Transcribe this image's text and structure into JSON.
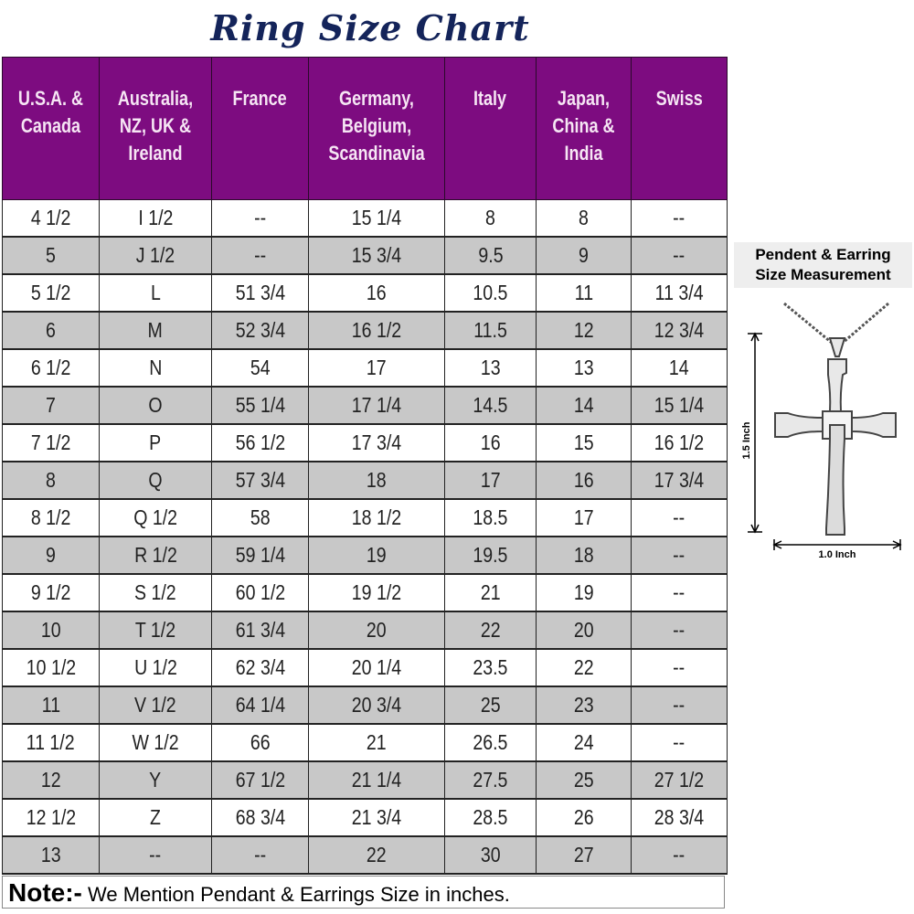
{
  "title": "Ring Size Chart",
  "colors": {
    "header_bg": "#7d0c80",
    "alt_row_bg": "#c8c8c8",
    "title": "#14245a"
  },
  "table": {
    "headers": [
      "U.S.A. & Canada",
      "Australia, NZ, UK & Ireland",
      "France",
      "Germany, Belgium, Scandinavia",
      "Italy",
      "Japan, China & India",
      "Swiss"
    ],
    "rows": [
      [
        "4 1/2",
        "I 1/2",
        "--",
        "15 1/4",
        "8",
        "8",
        "--"
      ],
      [
        "5",
        "J 1/2",
        "--",
        "15 3/4",
        "9.5",
        "9",
        "--"
      ],
      [
        "5 1/2",
        "L",
        "51 3/4",
        "16",
        "10.5",
        "11",
        "11 3/4"
      ],
      [
        "6",
        "M",
        "52 3/4",
        "16 1/2",
        "11.5",
        "12",
        "12 3/4"
      ],
      [
        "6 1/2",
        "N",
        "54",
        "17",
        "13",
        "13",
        "14"
      ],
      [
        "7",
        "O",
        "55 1/4",
        "17 1/4",
        "14.5",
        "14",
        "15 1/4"
      ],
      [
        "7 1/2",
        "P",
        "56 1/2",
        "17 3/4",
        "16",
        "15",
        "16 1/2"
      ],
      [
        "8",
        "Q",
        "57 3/4",
        "18",
        "17",
        "16",
        "17 3/4"
      ],
      [
        "8 1/2",
        "Q 1/2",
        "58",
        "18 1/2",
        "18.5",
        "17",
        "--"
      ],
      [
        "9",
        "R 1/2",
        "59 1/4",
        "19",
        "19.5",
        "18",
        "--"
      ],
      [
        "9 1/2",
        "S 1/2",
        "60 1/2",
        "19 1/2",
        "21",
        "19",
        "--"
      ],
      [
        "10",
        "T 1/2",
        "61 3/4",
        "20",
        "22",
        "20",
        "--"
      ],
      [
        "10 1/2",
        "U 1/2",
        "62 3/4",
        "20 1/4",
        "23.5",
        "22",
        "--"
      ],
      [
        "11",
        "V 1/2",
        "64 1/4",
        "20 3/4",
        "25",
        "23",
        "--"
      ],
      [
        "11 1/2",
        "W 1/2",
        "66",
        "21",
        "26.5",
        "24",
        "--"
      ],
      [
        "12",
        "Y",
        "67 1/2",
        "21 1/4",
        "27.5",
        "25",
        "27 1/2"
      ],
      [
        "12 1/2",
        "Z",
        "68 3/4",
        "21 3/4",
        "28.5",
        "26",
        "28 3/4"
      ],
      [
        "13",
        "--",
        "--",
        "22",
        "30",
        "27",
        "--"
      ]
    ]
  },
  "note": {
    "label": "Note:-",
    "text": " We Mention Pendant & Earrings Size in inches."
  },
  "side": {
    "title_line1": "Pendent & Earring",
    "title_line2": "Size Measurement",
    "height_label": "1.5 Inch",
    "width_label": "1.0 Inch",
    "image": "cross-pendant-on-chain"
  }
}
